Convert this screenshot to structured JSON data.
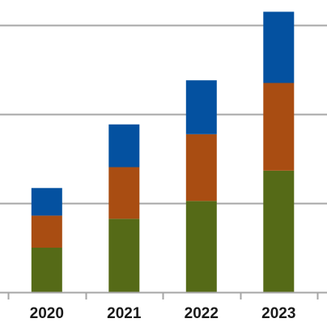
{
  "chart_data": {
    "type": "bar",
    "stacked": true,
    "categories": [
      "2020",
      "2021",
      "2022",
      "2023"
    ],
    "series": [
      {
        "values": [
          1.0,
          1.65,
          2.05,
          2.73
        ],
        "color": "#556a17"
      },
      {
        "values": [
          0.72,
          1.16,
          1.5,
          1.97
        ],
        "color": "#a94d12"
      },
      {
        "values": [
          0.62,
          0.96,
          1.21,
          1.6
        ],
        "color": "#0451a0"
      }
    ],
    "ylim": [
      0,
      6.0
    ],
    "gridlines": [
      2,
      4,
      6
    ],
    "grid": true,
    "legend": "none",
    "title": "",
    "xlabel": "",
    "ylabel": ""
  }
}
